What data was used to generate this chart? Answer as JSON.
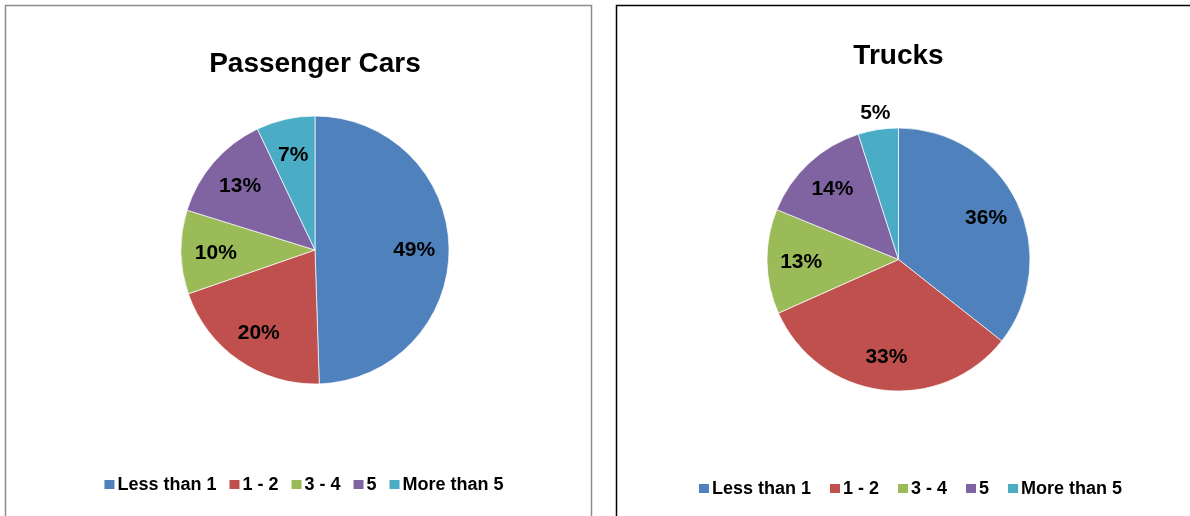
{
  "chart_data": [
    {
      "type": "pie",
      "title": "Passenger Cars",
      "categories": [
        "Less than 1",
        "1 - 2",
        "3 - 4",
        "5",
        "More than 5"
      ],
      "values": [
        49,
        20,
        10,
        13,
        7
      ],
      "colors": [
        "#4f81bd",
        "#c0504d",
        "#9bbb59",
        "#8064a2",
        "#4bacc6"
      ],
      "value_labels": [
        "49%",
        "20%",
        "10%",
        "13%",
        "7%"
      ],
      "legend": "bottom"
    },
    {
      "type": "pie",
      "title": "Trucks",
      "categories": [
        "Less than 1",
        "1 - 2",
        "3 - 4",
        "5",
        "More than 5"
      ],
      "values": [
        36,
        33,
        13,
        14,
        5
      ],
      "colors": [
        "#4f81bd",
        "#c0504d",
        "#9bbb59",
        "#8064a2",
        "#4bacc6"
      ],
      "value_labels": [
        "36%",
        "33%",
        "13%",
        "14%",
        "5%"
      ],
      "legend": "bottom"
    }
  ]
}
